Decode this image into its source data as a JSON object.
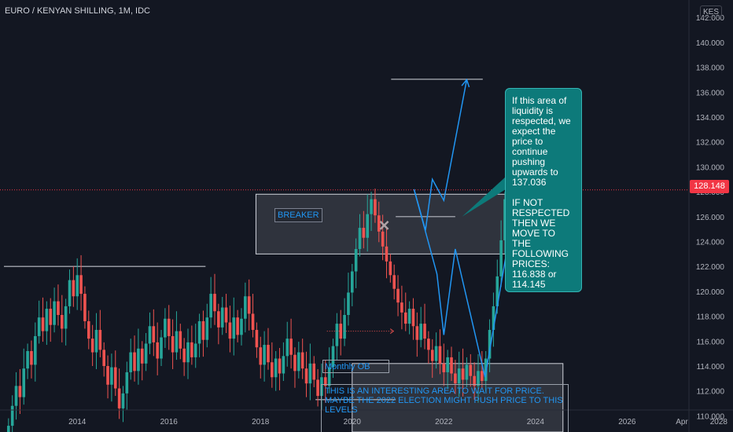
{
  "chart_title": "EURO / KENYAN SHILLING, 1M, IDC",
  "currency_button": "KES",
  "last_price_label": "128.148",
  "colors": {
    "up": "#26a69a",
    "down": "#ef5350",
    "arrow": "#2196f3",
    "callout": "#0d7a7a",
    "background": "#131722"
  },
  "annotations": {
    "breaker_label": "BREAKER",
    "monthly_ob_label": "Monthly OB",
    "callout_text": "If this area of liquidity is respected, we expect the price to continue pushing upwards to 137.036\n\nIF NOT RESPECTED THEN WE MOVE TO THE FOLLOWING PRICES:\n116.838   or 114.145",
    "note_text": " THIS IS AN INTERESTING AREA TO WAIT FOR PRICE. MAYBE THE 2022 ELECTION MIGHT PUSH PRICE TO THIS LEVELS"
  },
  "chart_data": {
    "type": "candlestick",
    "title": "EURO / KENYAN SHILLING, 1M, IDC",
    "ylim": [
      108.7,
      143.4
    ],
    "xlim": [
      2012.4,
      2027.35
    ],
    "y_ticks": [
      "110.000",
      "112.000",
      "114.000",
      "116.000",
      "118.000",
      "120.000",
      "122.000",
      "124.000",
      "126.000",
      "128.000",
      "130.000",
      "132.000",
      "134.000",
      "136.000",
      "138.000",
      "140.000",
      "142.000"
    ],
    "x_ticks": [
      {
        "label": "2014",
        "x": 2014
      },
      {
        "label": "2016",
        "x": 2016
      },
      {
        "label": "2018",
        "x": 2018
      },
      {
        "label": "2020",
        "x": 2020
      },
      {
        "label": "2022",
        "x": 2022
      },
      {
        "label": "2024",
        "x": 2024
      },
      {
        "label": "2026",
        "x": 2026
      },
      {
        "label": "2028",
        "x": 2028
      },
      {
        "label": "Apr",
        "x": 2029.3
      }
    ],
    "last_price": 128.148,
    "grid": false,
    "candles_close": [
      109.2,
      110.8,
      112.4,
      111.5,
      113.8,
      115.2,
      114.1,
      116.4,
      117.9,
      116.8,
      118.6,
      117.3,
      119.2,
      118.1,
      117.0,
      118.8,
      120.9,
      119.6,
      121.3,
      119.8,
      117.6,
      116.2,
      115.1,
      116.9,
      115.3,
      114.0,
      112.5,
      113.9,
      112.2,
      110.6,
      111.8,
      113.5,
      115.1,
      113.6,
      115.4,
      114.2,
      115.8,
      117.2,
      115.9,
      114.6,
      116.3,
      117.8,
      116.4,
      115.1,
      116.8,
      115.4,
      114.3,
      115.9,
      114.7,
      115.8,
      117.6,
      116.1,
      117.9,
      119.8,
      118.4,
      117.1,
      118.7,
      117.5,
      116.2,
      117.9,
      116.5,
      117.8,
      119.6,
      118.2,
      116.9,
      115.5,
      114.1,
      115.7,
      114.3,
      113.1,
      114.6,
      113.4,
      114.8,
      116.2,
      114.9,
      113.6,
      115.1,
      113.8,
      112.6,
      114.2,
      112.9,
      111.6,
      113.1,
      112.4,
      113.9,
      115.6,
      117.4,
      116.2,
      118.1,
      119.9,
      121.6,
      123.4,
      125.1,
      124.3,
      126.2,
      127.4,
      126.1,
      124.8,
      123.6,
      122.4,
      121.3,
      120.2,
      119.1,
      118.3,
      117.4,
      118.6,
      117.2,
      116.1,
      117.4,
      116.2,
      115.3,
      114.4,
      115.6,
      114.2,
      113.5,
      114.7,
      113.4,
      112.6,
      113.8,
      112.9,
      114.1,
      113.2,
      112.4,
      113.6,
      112.8,
      114.6,
      116.9,
      118.8,
      121.2,
      124.1,
      127.4,
      129.3,
      128.1,
      130.1,
      131.9,
      133.6,
      134.8,
      132.6,
      131.1,
      129.3,
      128.148
    ],
    "levels": [
      {
        "from": 2012.4,
        "to": 2016.8,
        "y": 122.0
      },
      {
        "from": 2020.85,
        "to": 2022.85,
        "y": 137.036
      },
      {
        "from": 2020.95,
        "to": 2022.25,
        "y": 126.0
      },
      {
        "from": 2019.2,
        "to": 2020.95,
        "y": 111.3
      }
    ],
    "zones": [
      {
        "name": "breaker",
        "x0": 2017.9,
        "x1": 2024.15,
        "y0": 123.0,
        "y1": 127.8
      },
      {
        "name": "monthly-ob",
        "x0": 2020.0,
        "x1": 2024.6,
        "y0": 108.7,
        "y1": 114.2
      }
    ],
    "projection_paths": [
      [
        [
          2021.35,
          128.2
        ],
        [
          2021.6,
          124.9
        ],
        [
          2021.75,
          129.0
        ],
        [
          2022.0,
          127.3
        ],
        [
          2022.5,
          137.0
        ]
      ],
      [
        [
          2021.35,
          128.2
        ],
        [
          2021.85,
          121.4
        ],
        [
          2022.0,
          116.5
        ],
        [
          2022.25,
          123.4
        ],
        [
          2022.9,
          113.1
        ],
        [
          2023.55,
          127.0
        ],
        [
          2023.9,
          132.5
        ]
      ]
    ],
    "breaker_marker": {
      "x": 2020.7,
      "y": 125.3
    }
  }
}
